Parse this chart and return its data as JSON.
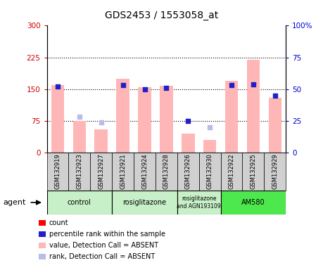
{
  "title": "GDS2453 / 1553058_at",
  "samples": [
    "GSM132919",
    "GSM132923",
    "GSM132927",
    "GSM132921",
    "GSM132924",
    "GSM132928",
    "GSM132926",
    "GSM132930",
    "GSM132922",
    "GSM132925",
    "GSM132929"
  ],
  "bar_values": [
    160,
    75,
    55,
    175,
    155,
    158,
    45,
    30,
    170,
    220,
    130
  ],
  "rank_values": [
    52,
    28,
    24,
    53,
    50,
    51,
    25,
    20,
    53,
    54,
    45
  ],
  "absent_bar": [
    true,
    true,
    true,
    true,
    true,
    true,
    true,
    true,
    true,
    true,
    true
  ],
  "absent_rank": [
    false,
    true,
    true,
    false,
    false,
    false,
    false,
    true,
    false,
    false,
    false
  ],
  "groups": [
    {
      "label": "control",
      "start": 0,
      "end": 3
    },
    {
      "label": "rosiglitazone",
      "start": 3,
      "end": 6
    },
    {
      "label": "rosiglitazone\nand AGN193109",
      "start": 6,
      "end": 8
    },
    {
      "label": "AM580",
      "start": 8,
      "end": 11
    }
  ],
  "group_colors": [
    "#c8f0c8",
    "#c8f0c8",
    "#c8f0c8",
    "#4de84d"
  ],
  "ylim_left": [
    0,
    300
  ],
  "ylim_right": [
    0,
    100
  ],
  "yticks_left": [
    0,
    75,
    150,
    225,
    300
  ],
  "yticks_right": [
    0,
    25,
    50,
    75,
    100
  ],
  "bar_color_absent": "#ffb6b6",
  "bar_color_present": "#ff0000",
  "rank_color_absent": "#b8bce8",
  "rank_color_present": "#2020cc",
  "dot_size": 25,
  "sample_box_color": "#d0d0d0",
  "agent_label": "agent",
  "legend_items": [
    {
      "label": "count",
      "color": "#ff0000"
    },
    {
      "label": "percentile rank within the sample",
      "color": "#2020cc"
    },
    {
      "label": "value, Detection Call = ABSENT",
      "color": "#ffb6b6"
    },
    {
      "label": "rank, Detection Call = ABSENT",
      "color": "#b8bce8"
    }
  ],
  "background_color": "#ffffff",
  "axis_color_left": "#cc0000",
  "axis_color_right": "#0000cc"
}
